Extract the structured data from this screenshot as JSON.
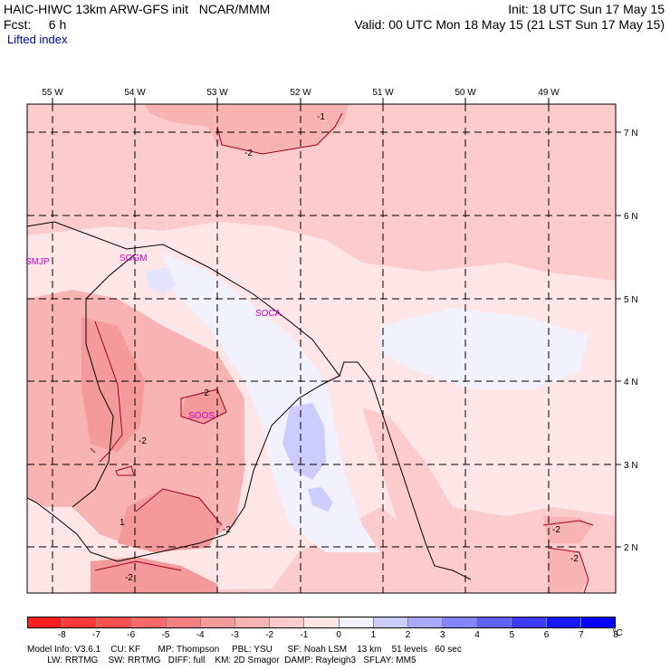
{
  "header": {
    "line1_left": "HAIC-HIWC 13km ARW-GFS init   NCAR/MMM",
    "line1_right": "Init: 18 UTC Sun 17 May 15",
    "line2_left": "Fcst:     6 h",
    "line2_right": "Valid: 00 UTC Mon 18 May 15 (21 LST Sun 17 May 15)",
    "field": "Lifted index"
  },
  "map": {
    "lon_labels": [
      "55 W",
      "54 W",
      "53 W",
      "52 W",
      "51 W",
      "50 W",
      "49 W"
    ],
    "lat_labels": [
      "7 N",
      "6 N",
      "5 N",
      "4 N",
      "3 N",
      "2 N"
    ],
    "stations": [
      "SMJP",
      "SOGM",
      "SOCA",
      "SOOS"
    ],
    "contour_label": "-2",
    "contour_minus1": "-1",
    "contour_label_1": "1"
  },
  "colorbar": {
    "labels": [
      "-8",
      "-7",
      "-6",
      "-5",
      "-4",
      "-3",
      "-2",
      "-1",
      "0",
      "1",
      "2",
      "3",
      "4",
      "5",
      "6",
      "7",
      "8"
    ],
    "unit": "°C",
    "colors": [
      "#ff2020",
      "#ff3838",
      "#ff5050",
      "#ff6868",
      "#f58080",
      "#f59a9a",
      "#f8b3b3",
      "#fccccc",
      "#ffe6e6",
      "#f2f2ff",
      "#ccccff",
      "#a8a8ff",
      "#8484ff",
      "#6060ff",
      "#3c3cff",
      "#1818ff",
      "#0000ff"
    ]
  },
  "footer": {
    "line1": "Model Info: V3.6.1    CU: KF       MP: Thompson     PBL: YSU      SF: Noah LSM    13 km    51 levels   60 sec",
    "line2": "        LW: RRTMG    SW: RRTMG   DIFF: full    KM: 2D Smagor  DAMP: Rayleigh3   SFLAY: MM5"
  }
}
